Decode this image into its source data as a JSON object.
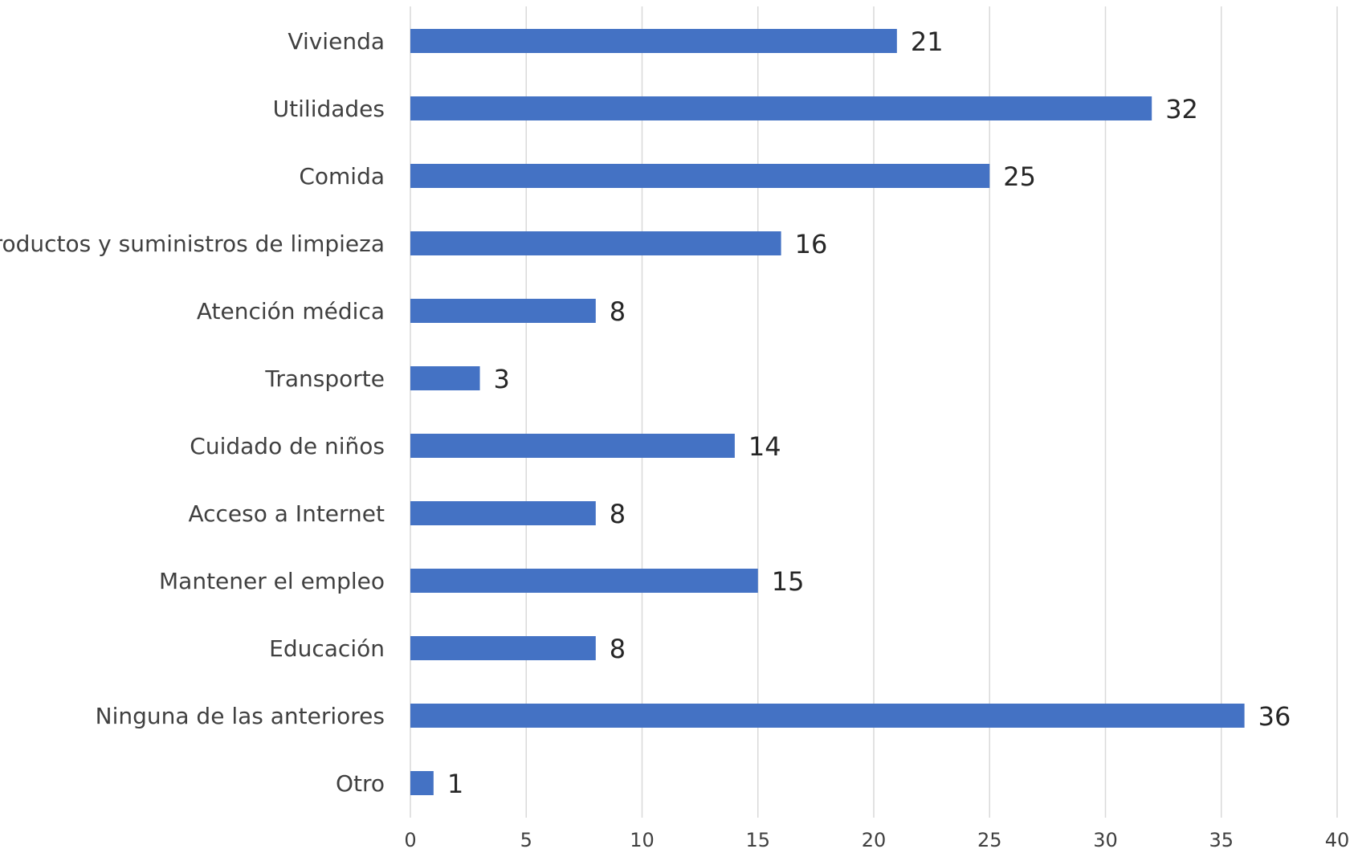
{
  "chart_data": {
    "type": "bar",
    "orientation": "horizontal",
    "categories": [
      "Vivienda",
      "Utilidades",
      "Comida",
      "Productos y suministros de limpieza",
      "Atención médica",
      "Transporte",
      "Cuidado de niños",
      "Acceso a Internet",
      "Mantener el empleo",
      "Educación",
      "Ninguna de las anteriores",
      "Otro"
    ],
    "values": [
      21,
      32,
      25,
      16,
      8,
      3,
      14,
      8,
      15,
      8,
      36,
      1
    ],
    "xlim": [
      0,
      40
    ],
    "xticks": [
      0,
      5,
      10,
      15,
      20,
      25,
      30,
      35,
      40
    ],
    "grid": "vertical",
    "legend": "none",
    "bar_color": "#4472C4"
  }
}
